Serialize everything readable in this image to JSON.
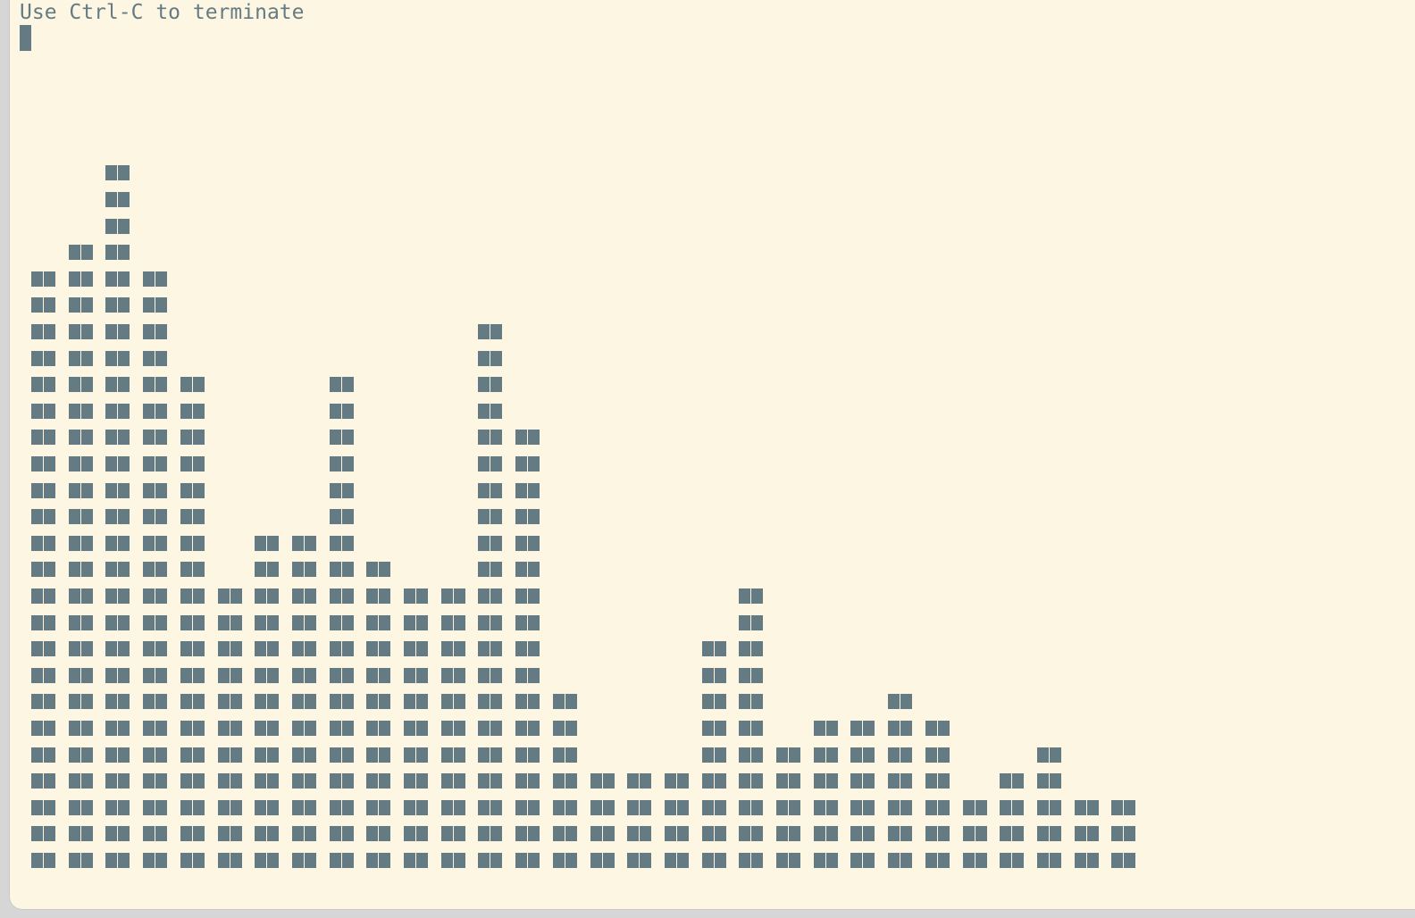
{
  "terminal": {
    "message": "Use Ctrl-C to terminate",
    "foreground_color": "#657b83",
    "background_color": "#fdf6e3"
  },
  "histogram": {
    "block_glyph": "██",
    "column_heights": [
      23,
      24,
      27,
      23,
      19,
      11,
      13,
      13,
      19,
      12,
      11,
      11,
      21,
      17,
      7,
      4,
      4,
      4,
      9,
      11,
      5,
      6,
      6,
      7,
      6,
      3,
      4,
      5,
      3,
      3
    ]
  }
}
